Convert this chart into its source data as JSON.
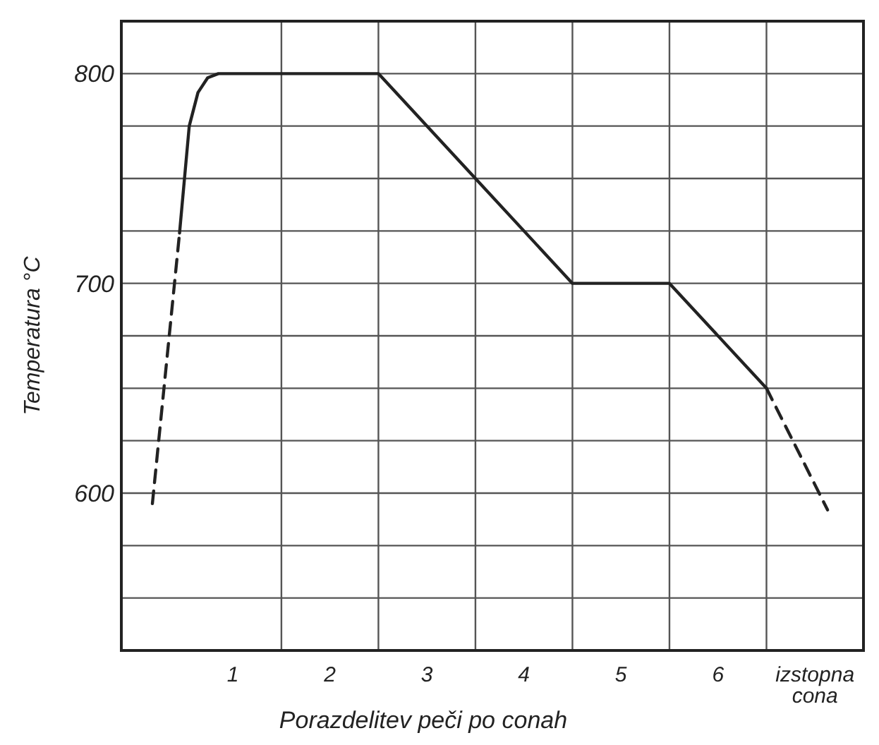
{
  "chart_data": {
    "type": "line",
    "xlabel": "Porazdelitev peči po conah",
    "ylabel": "Temperatura °C",
    "xlim": [
      -0.15,
      7.5
    ],
    "ylim": [
      525,
      825
    ],
    "xticks": [
      1,
      {
        "value": 1.5,
        "label": null
      },
      2,
      {
        "value": 2.5,
        "label": null
      },
      3,
      {
        "value": 3.5,
        "label": null
      },
      4,
      {
        "value": 4.5,
        "label": null
      },
      5,
      {
        "value": 5.5,
        "label": null
      },
      6,
      {
        "value": 6.5,
        "label": null
      },
      {
        "value": 7,
        "label": "izstopna cona"
      }
    ],
    "yticks": [
      {
        "value": 550,
        "label": null
      },
      {
        "value": 575,
        "label": null
      },
      600,
      {
        "value": 625,
        "label": null
      },
      {
        "value": 650,
        "label": null
      },
      {
        "value": 675,
        "label": null
      },
      700,
      {
        "value": 725,
        "label": null
      },
      {
        "value": 750,
        "label": null
      },
      {
        "value": 775,
        "label": null
      },
      800
    ],
    "grid": true,
    "marker": "none",
    "series": [
      {
        "color": "#222222",
        "line_style": "dashed",
        "x": [
          0.17,
          0.45
        ],
        "values": [
          595,
          724
        ]
      },
      {
        "color": "#222222",
        "line_style": "solid",
        "x": [
          0.45,
          0.55,
          0.64,
          0.74,
          0.85,
          2.5,
          4.5,
          5.5,
          6.5
        ],
        "values": [
          724,
          775,
          791,
          798,
          800,
          800,
          700,
          700,
          650
        ]
      },
      {
        "color": "#222222",
        "line_style": "dashed",
        "x": [
          6.5,
          7.13
        ],
        "values": [
          650,
          592
        ]
      }
    ]
  }
}
